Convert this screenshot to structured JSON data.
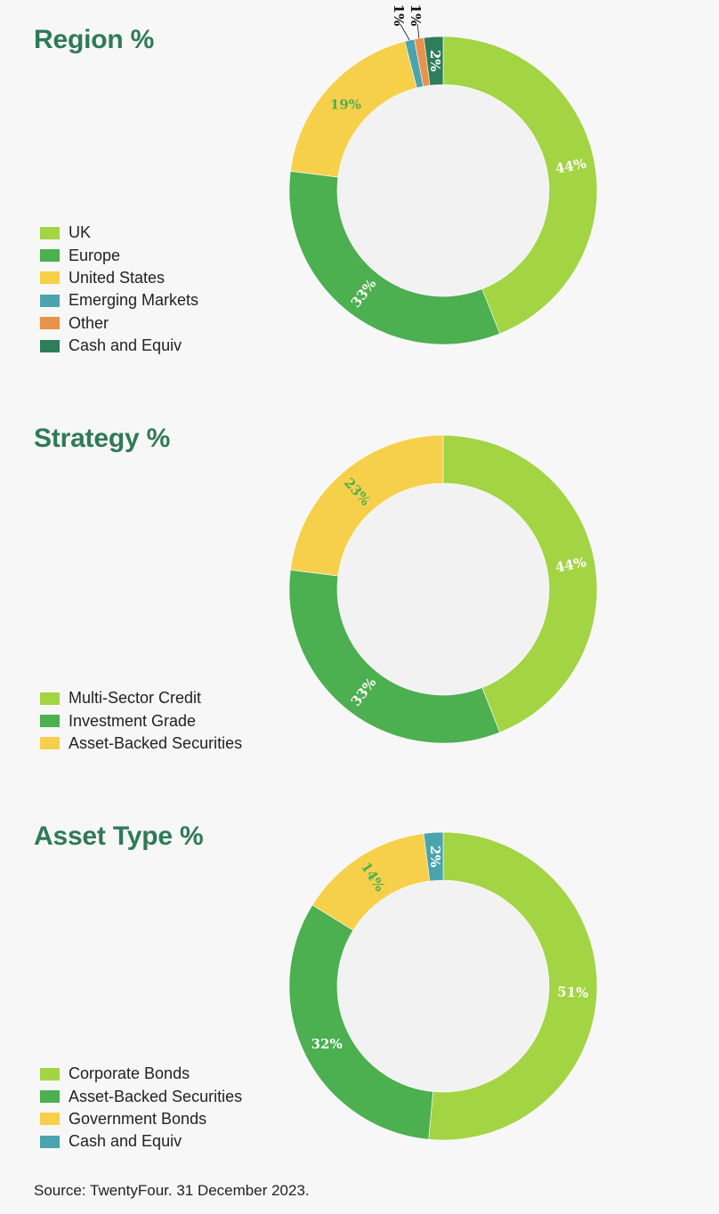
{
  "chart_data": [
    {
      "type": "pie",
      "title": "Region %",
      "categories": [
        "UK",
        "Europe",
        "United States",
        "Emerging Markets",
        "Other",
        "Cash and Equiv"
      ],
      "values": [
        44,
        33,
        19,
        1,
        1,
        2
      ],
      "labels": [
        "44%",
        "33%",
        "19%",
        "1%",
        "1%",
        "2%"
      ],
      "colors": [
        "#a3d444",
        "#4caf50",
        "#f7d04b",
        "#4aa3ad",
        "#e8924a",
        "#2e7d5b"
      ],
      "label_colors": [
        "#ffffff",
        "#ffffff",
        "#4caf50",
        "#111111",
        "#111111",
        "#ffffff"
      ],
      "legend_position": "left"
    },
    {
      "type": "pie",
      "title": "Strategy %",
      "categories": [
        "Multi-Sector Credit",
        "Investment Grade",
        "Asset-Backed Securities"
      ],
      "values": [
        44,
        33,
        23
      ],
      "labels": [
        "44%",
        "33%",
        "23%"
      ],
      "colors": [
        "#a3d444",
        "#4caf50",
        "#f7d04b"
      ],
      "label_colors": [
        "#ffffff",
        "#ffffff",
        "#4caf50"
      ],
      "legend_position": "left"
    },
    {
      "type": "pie",
      "title": "Asset Type %",
      "categories": [
        "Corporate Bonds",
        "Asset-Backed Securities",
        "Government Bonds",
        "Cash and Equiv"
      ],
      "values": [
        51,
        32,
        14,
        2
      ],
      "labels": [
        "51%",
        "32%",
        "14%",
        "2%"
      ],
      "colors": [
        "#a3d444",
        "#4caf50",
        "#f7d04b",
        "#4aa3ad"
      ],
      "label_colors": [
        "#ffffff",
        "#ffffff",
        "#4caf50",
        "#ffffff"
      ],
      "legend_position": "left"
    }
  ],
  "source": "Source: TwentyFour. 31 December 2023."
}
